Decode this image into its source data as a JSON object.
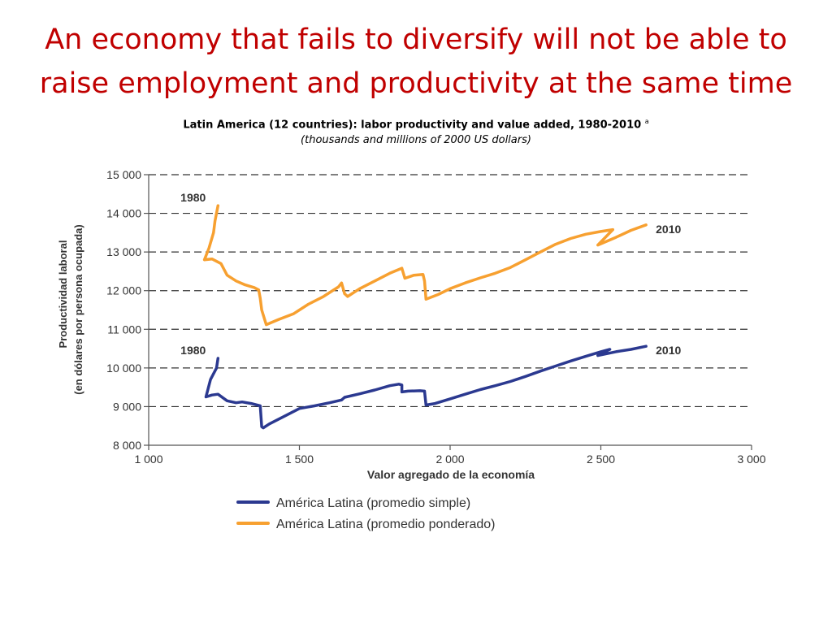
{
  "slide": {
    "title_line1": "An economy that fails to diversify will not be able to",
    "title_line2": "raise employment and productivity at the same time"
  },
  "colors": {
    "title": "#c00000",
    "simple_series": "#2b3990",
    "weighted_series": "#f7a030",
    "grid": "#333333"
  },
  "chart_data": {
    "type": "line",
    "title": "Latin America (12 countries): labor productivity and value added, 1980-2010",
    "title_superscript": "a",
    "subtitle": "(thousands and millions of  2000 US dollars)",
    "xlabel": "Valor agregado de la economía",
    "ylabel_line1": "Productividad laboral",
    "ylabel_line2": "(en dólares por persona ocupada)",
    "xlim": [
      1000,
      3000
    ],
    "ylim": [
      8000,
      15000
    ],
    "x_ticks": [
      1000,
      1500,
      2000,
      2500,
      3000
    ],
    "x_tick_labels": [
      "1 000",
      "1 500",
      "2 000",
      "2 500",
      "3 000"
    ],
    "y_ticks": [
      8000,
      9000,
      10000,
      11000,
      12000,
      13000,
      14000,
      15000
    ],
    "y_tick_labels": [
      "8 000",
      "9 000",
      "10 000",
      "11 000",
      "12 000",
      "13 000",
      "14 000",
      "15 000"
    ],
    "grid": "horizontal dashed",
    "legend_position": "bottom-left",
    "series": [
      {
        "name": "América Latina (promedio simple)",
        "color": "#2b3990",
        "start_label": "1980",
        "end_label": "2010",
        "x": [
          1230,
          1225,
          1205,
          1190,
          1210,
          1230,
          1260,
          1290,
          1310,
          1340,
          1370,
          1375,
          1380,
          1400,
          1450,
          1500,
          1550,
          1600,
          1640,
          1650,
          1700,
          1750,
          1800,
          1830,
          1840,
          1840,
          1860,
          1900,
          1915,
          1920,
          1950,
          2000,
          2050,
          2100,
          2150,
          2200,
          2250,
          2300,
          2350,
          2400,
          2450,
          2500,
          2530,
          2490,
          2550,
          2600,
          2650
        ],
        "y": [
          10250,
          10000,
          9700,
          9250,
          9300,
          9320,
          9150,
          9100,
          9120,
          9080,
          9020,
          8480,
          8450,
          8550,
          8750,
          8950,
          9020,
          9100,
          9170,
          9240,
          9330,
          9430,
          9540,
          9580,
          9560,
          9380,
          9400,
          9410,
          9400,
          9040,
          9080,
          9200,
          9320,
          9440,
          9540,
          9650,
          9780,
          9920,
          10050,
          10180,
          10300,
          10420,
          10480,
          10320,
          10420,
          10480,
          10560
        ]
      },
      {
        "name": "América Latina (promedio ponderado)",
        "color": "#f7a030",
        "start_label": "1980",
        "end_label": "2010",
        "x": [
          1230,
          1220,
          1215,
          1200,
          1185,
          1210,
          1240,
          1260,
          1290,
          1320,
          1350,
          1365,
          1370,
          1375,
          1390,
          1430,
          1480,
          1530,
          1580,
          1630,
          1640,
          1650,
          1660,
          1700,
          1750,
          1800,
          1840,
          1850,
          1850,
          1880,
          1910,
          1915,
          1920,
          1960,
          2000,
          2050,
          2100,
          2150,
          2200,
          2250,
          2300,
          2350,
          2400,
          2450,
          2500,
          2540,
          2490,
          2550,
          2600,
          2650
        ],
        "y": [
          14200,
          13800,
          13500,
          13100,
          12800,
          12820,
          12700,
          12400,
          12250,
          12150,
          12080,
          12020,
          11800,
          11500,
          11120,
          11250,
          11400,
          11650,
          11850,
          12100,
          12200,
          11920,
          11850,
          12050,
          12250,
          12450,
          12580,
          12320,
          12320,
          12400,
          12420,
          12250,
          11780,
          11900,
          12050,
          12200,
          12330,
          12450,
          12600,
          12800,
          13000,
          13200,
          13350,
          13460,
          13530,
          13580,
          13180,
          13380,
          13560,
          13700
        ]
      }
    ]
  }
}
